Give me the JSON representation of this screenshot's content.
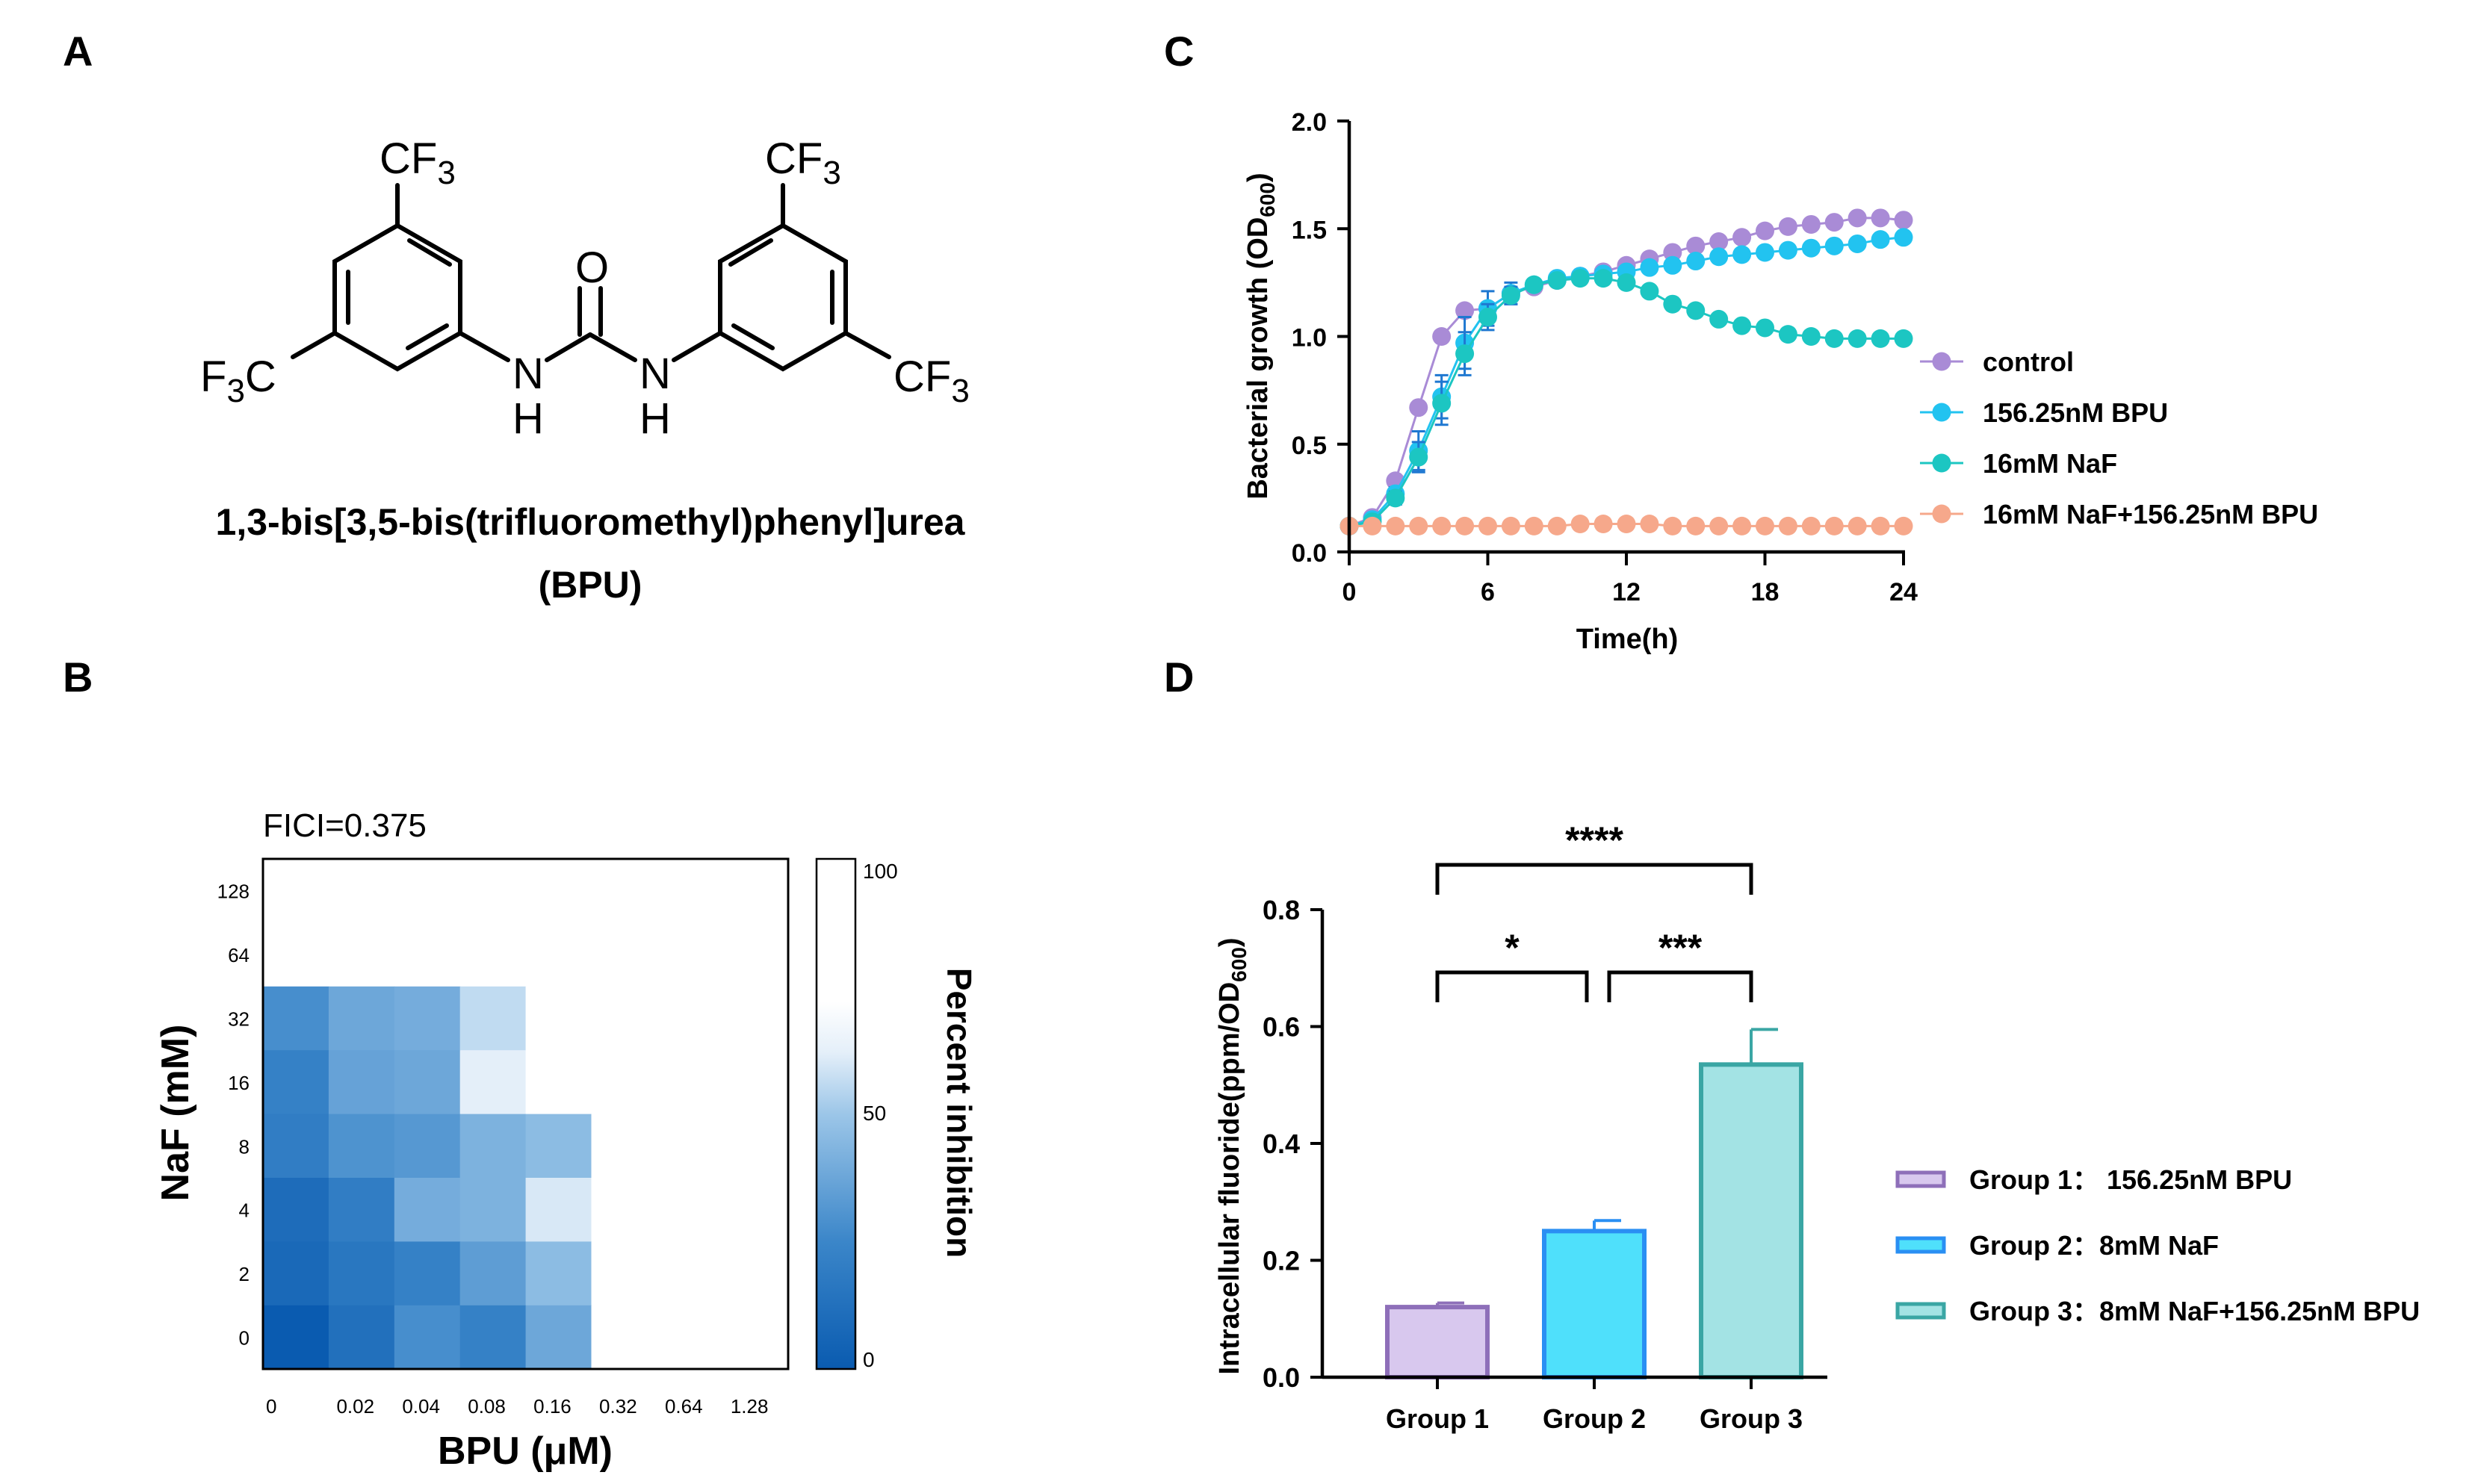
{
  "panels": {
    "a": "A",
    "b": "B",
    "c": "C",
    "d": "D"
  },
  "panel_a": {
    "compound_name": "1,3-bis[3,5-bis(trifluoromethyl)phenyl]urea",
    "compound_abbrev": "(BPU)",
    "atoms": {
      "cf3_left_top": "CF",
      "cf3_right_top": "CF",
      "cf3_left": "CF",
      "cf3_right": "CF",
      "sub3": "3",
      "o": "O",
      "n": "N",
      "h": "H",
      "f3_prefix": "F",
      "f3_sub": "3",
      "c": "C"
    }
  },
  "chart_data": [
    {
      "panel": "B",
      "type": "heatmap",
      "title": "FICI=0.375",
      "xlabel": "BPU (μM)",
      "ylabel": "NaF (mM)",
      "colorbar_label": "Percent inhibition",
      "colorbar_ticks": [
        "100",
        "50",
        "0"
      ],
      "colorbar_range": [
        0,
        100
      ],
      "x_categories": [
        "0",
        "0.02",
        "0.04",
        "0.08",
        "0.16",
        "0.32",
        "0.64",
        "1.28"
      ],
      "y_categories": [
        "0",
        "2",
        "4",
        "8",
        "16",
        "32",
        "64",
        "128"
      ],
      "colors": [
        "#0a5bb0",
        "#2f7cc6",
        "#8ab9e0",
        "#b7d5ee",
        "#dbe9f6",
        "#ffffff"
      ],
      "values_note": "rows listed from NaF=128 (top) to NaF=0 (bottom); null = no growth-inhibition measured (white)",
      "rows": [
        {
          "naf": "128",
          "values": [
            98,
            100,
            100,
            100,
            100,
            100,
            100,
            100
          ]
        },
        {
          "naf": "64",
          "values": [
            88,
            86,
            100,
            100,
            100,
            100,
            100,
            100
          ]
        },
        {
          "naf": "32",
          "values": [
            28,
            38,
            40,
            56,
            100,
            100,
            100,
            100
          ]
        },
        {
          "naf": "16",
          "values": [
            22,
            36,
            38,
            62,
            100,
            100,
            100,
            100
          ]
        },
        {
          "naf": "8",
          "values": [
            20,
            30,
            32,
            42,
            46,
            100,
            100,
            100
          ]
        },
        {
          "naf": "4",
          "values": [
            10,
            20,
            40,
            42,
            60,
            100,
            100,
            100
          ]
        },
        {
          "naf": "2",
          "values": [
            8,
            16,
            22,
            34,
            46,
            86,
            100,
            100
          ]
        },
        {
          "naf": "0",
          "values": [
            0,
            12,
            28,
            22,
            38,
            82,
            100,
            100
          ]
        }
      ]
    },
    {
      "panel": "C",
      "type": "line",
      "xlabel": "Time(h)",
      "ylabel_main": "Bacterial growth (OD",
      "ylabel_sub": "600",
      "ylabel_end": ")",
      "xlim": [
        0,
        24
      ],
      "ylim": [
        0,
        2.0
      ],
      "xticks": [
        "0",
        "6",
        "12",
        "18",
        "24"
      ],
      "yticks": [
        "0.0",
        "0.5",
        "1.0",
        "1.5",
        "2.0"
      ],
      "x": [
        0,
        1,
        2,
        3,
        4,
        5,
        6,
        7,
        8,
        9,
        10,
        11,
        12,
        13,
        14,
        15,
        16,
        17,
        18,
        19,
        20,
        21,
        22,
        23,
        24
      ],
      "series": [
        {
          "name": "control",
          "color": "#a98bd6",
          "values": [
            0.12,
            0.16,
            0.33,
            0.67,
            1.0,
            1.12,
            1.13,
            1.2,
            1.23,
            1.26,
            1.28,
            1.3,
            1.33,
            1.36,
            1.39,
            1.42,
            1.44,
            1.46,
            1.49,
            1.51,
            1.52,
            1.53,
            1.55,
            1.55,
            1.54
          ],
          "err": [
            0,
            0,
            0,
            0,
            0,
            0,
            0,
            0,
            0,
            0,
            0,
            0,
            0,
            0,
            0,
            0,
            0,
            0,
            0,
            0,
            0,
            0,
            0,
            0,
            0
          ]
        },
        {
          "name": "156.25nM BPU",
          "color": "#22c3f0",
          "values": [
            0.12,
            0.15,
            0.27,
            0.47,
            0.72,
            0.97,
            1.13,
            1.2,
            1.24,
            1.27,
            1.28,
            1.29,
            1.3,
            1.32,
            1.33,
            1.35,
            1.37,
            1.38,
            1.39,
            1.4,
            1.41,
            1.42,
            1.43,
            1.45,
            1.46
          ],
          "err": [
            0,
            0,
            0.03,
            0.09,
            0.1,
            0.12,
            0.08,
            0.05,
            0,
            0,
            0,
            0,
            0,
            0,
            0,
            0,
            0,
            0,
            0,
            0,
            0,
            0,
            0,
            0,
            0
          ]
        },
        {
          "name": "16mM NaF",
          "color": "#1cc6c2",
          "values": [
            0.12,
            0.14,
            0.25,
            0.44,
            0.69,
            0.92,
            1.09,
            1.19,
            1.24,
            1.26,
            1.27,
            1.27,
            1.25,
            1.21,
            1.15,
            1.12,
            1.08,
            1.05,
            1.04,
            1.01,
            1.0,
            0.99,
            0.99,
            0.99,
            0.99
          ],
          "err": [
            0,
            0,
            0.03,
            0.07,
            0.1,
            0.1,
            0.06,
            0.04,
            0,
            0,
            0,
            0,
            0,
            0,
            0,
            0,
            0,
            0,
            0,
            0,
            0,
            0,
            0,
            0,
            0
          ]
        },
        {
          "name": "16mM NaF+156.25nM BPU",
          "color": "#f6a88b",
          "values": [
            0.12,
            0.12,
            0.12,
            0.12,
            0.12,
            0.12,
            0.12,
            0.12,
            0.12,
            0.12,
            0.13,
            0.13,
            0.13,
            0.13,
            0.12,
            0.12,
            0.12,
            0.12,
            0.12,
            0.12,
            0.12,
            0.12,
            0.12,
            0.12,
            0.12
          ],
          "err": [
            0,
            0,
            0,
            0,
            0,
            0,
            0,
            0,
            0,
            0,
            0,
            0,
            0,
            0,
            0,
            0,
            0,
            0,
            0,
            0,
            0,
            0,
            0,
            0,
            0
          ]
        }
      ]
    },
    {
      "panel": "D",
      "type": "bar",
      "ylabel_main": "Intracellular fluoride(ppm/OD",
      "ylabel_sub": "600",
      "ylabel_end": ")",
      "ylim": [
        0,
        0.8
      ],
      "yticks": [
        "0.0",
        "0.2",
        "0.4",
        "0.6",
        "0.8"
      ],
      "categories": [
        "Group 1",
        "Group 2",
        "Group 3"
      ],
      "values": [
        0.12,
        0.25,
        0.535
      ],
      "errors": [
        0.007,
        0.018,
        0.06
      ],
      "fill_colors": [
        "#d8c8ee",
        "#4fe0fb",
        "#a3e3e4"
      ],
      "edge_colors": [
        "#8e6fb9",
        "#2a8ff3",
        "#3aa6a4"
      ],
      "legend": [
        {
          "label": "Group 1：  156.25nM BPU"
        },
        {
          "label": "Group 2：8mM NaF"
        },
        {
          "label": "Group 3：8mM NaF+156.25nM BPU"
        }
      ],
      "significance": [
        {
          "from": "Group 1",
          "to": "Group 3",
          "label": "****"
        },
        {
          "from": "Group 1",
          "to": "Group 2",
          "label": "*"
        },
        {
          "from": "Group 2",
          "to": "Group 3",
          "label": "***"
        }
      ]
    }
  ]
}
